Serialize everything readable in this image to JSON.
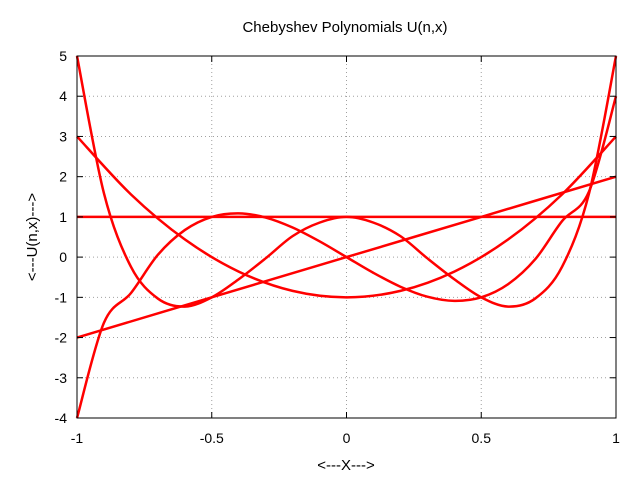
{
  "chart_data": {
    "type": "line",
    "title": "Chebyshev Polynomials U(n,x)",
    "xlabel": "<---X--->",
    "ylabel": "<---U(n,x)--->",
    "xlim": [
      -1,
      1
    ],
    "ylim": [
      -4,
      5
    ],
    "grid": true,
    "legend": "none",
    "x_ticks": [
      {
        "value": -1,
        "label": "-1"
      },
      {
        "value": -0.5,
        "label": "-0.5"
      },
      {
        "value": 0,
        "label": "0"
      },
      {
        "value": 0.5,
        "label": "0.5"
      },
      {
        "value": 1,
        "label": "1"
      }
    ],
    "y_ticks": [
      {
        "value": -4,
        "label": "-4"
      },
      {
        "value": -3,
        "label": "-3"
      },
      {
        "value": -2,
        "label": "-2"
      },
      {
        "value": -1,
        "label": "-1"
      },
      {
        "value": 0,
        "label": "0"
      },
      {
        "value": 1,
        "label": "1"
      },
      {
        "value": 2,
        "label": "2"
      },
      {
        "value": 3,
        "label": "3"
      },
      {
        "value": 4,
        "label": "4"
      },
      {
        "value": 5,
        "label": "5"
      }
    ],
    "series_color": "#ff0000",
    "series": [
      {
        "x": [
          -1,
          1
        ],
        "y": [
          1,
          1
        ]
      },
      {
        "x": [
          -1,
          -0.5,
          0,
          0.5,
          1
        ],
        "y": [
          -2,
          -1,
          0,
          1,
          2
        ]
      },
      {
        "x": [
          -1,
          -0.8,
          -0.6,
          -0.4,
          -0.2,
          0,
          0.2,
          0.4,
          0.6,
          0.8,
          1
        ],
        "y": [
          3,
          1.56,
          0.44,
          -0.36,
          -0.84,
          -1,
          -0.84,
          -0.36,
          0.44,
          1.56,
          3
        ]
      },
      {
        "x": [
          -1,
          -0.9,
          -0.8,
          -0.7,
          -0.6,
          -0.5,
          -0.4,
          -0.3,
          -0.2,
          -0.1,
          0,
          0.1,
          0.2,
          0.3,
          0.4,
          0.5,
          0.6,
          0.7,
          0.8,
          0.9,
          1
        ],
        "y": [
          -4,
          -1.632,
          -0.896,
          0.056,
          0.672,
          1,
          1.088,
          0.984,
          0.736,
          0.392,
          0,
          -0.392,
          -0.736,
          -0.984,
          -1.088,
          -1,
          -0.672,
          -0.056,
          0.896,
          1.632,
          4
        ]
      },
      {
        "x": [
          -1,
          -0.9,
          -0.8,
          -0.7,
          -0.6,
          -0.5,
          -0.4,
          -0.3,
          -0.2,
          -0.1,
          0,
          0.1,
          0.2,
          0.3,
          0.4,
          0.5,
          0.6,
          0.7,
          0.8,
          0.9,
          1
        ],
        "y": [
          5,
          1.5856,
          -0.2384,
          -1.0304,
          -1.2304,
          -1,
          -0.5504,
          -0.0304,
          0.5216,
          0.8576,
          1,
          0.8576,
          0.5216,
          -0.0304,
          -0.5504,
          -1,
          -1.2304,
          -1.0304,
          -0.2384,
          1.5856,
          5
        ]
      }
    ]
  }
}
